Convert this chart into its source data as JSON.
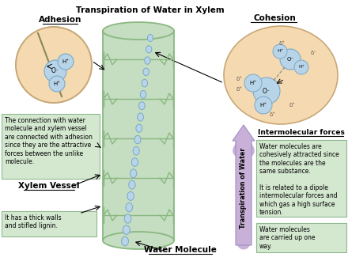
{
  "title": "Transpiration of Water in Xylem",
  "bg_color": "#ffffff",
  "xylem_color": "#c5ddc0",
  "xylem_border": "#8ab882",
  "xylem_dark": "#6a9e62",
  "circle_bg": "#f5d9b0",
  "circle_border": "#c8a878",
  "water_mol_color": "#b8d4e8",
  "water_mol_border": "#7aaac8",
  "box_bg": "#d4e8d0",
  "box_border": "#90b890",
  "arrow_color": "#c8b0d8",
  "text_color": "#000000",
  "adhesion_label": "Adhesion",
  "cohesion_label": "Cohesion",
  "title_text": "Transpiration of Water in Xylem",
  "xylem_vessel_label": "Xylem Vessel",
  "water_molecule_label": "Water Molecule",
  "intermolecular_label": "Intermolecular forces",
  "transpiration_label": "Transpiration of Water",
  "adhesion_box_text": "The connection with water\nmolecule and xylem vessel\nare connected with adhesion\nsince they are the attractive\nforces between the unlike\nmolecule.",
  "cohesion_box_text": "Water molecules are\ncohesively attracted since\nthe molecules are the\nsame substance.\n\nIt is related to a dipole\nintermolecular forces and\nwhich gas a high surface\ntension.",
  "water_carried_text": "Water molecules\nare carried up one\nway.",
  "xylem_vessel_text": "It has a thick walls\nand stifled lignin."
}
